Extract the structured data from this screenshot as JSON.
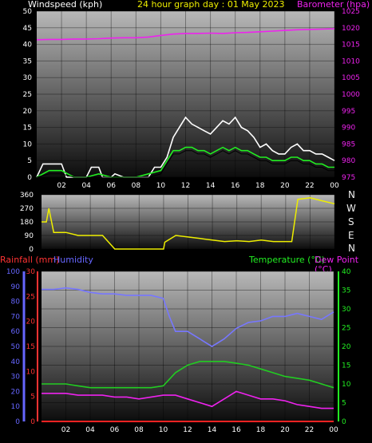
{
  "header": {
    "wind_title": "Windspeed (kph)",
    "graph_title": "24 hour graph day : 01 May 2023",
    "baro_title": "Barometer (hpa)"
  },
  "direction_labels": [
    "N",
    "W",
    "S",
    "E",
    "N"
  ],
  "bottom_titles": {
    "rain": "Rainfall (mm)",
    "humidity": "Humidity",
    "temperature": "Temperature (°C)",
    "dewpoint": "Dew Point (°C)"
  },
  "colors": {
    "wind_avg": "#22ee22",
    "wind_gust": "#ffffff",
    "wind_black": "#000000",
    "barometer": "#ee22ee",
    "direction": "#eeee00",
    "humidity": "#7777ff",
    "temperature": "#22cc22",
    "dewpoint": "#ee22ee",
    "rain": "#ff2222",
    "rain_axis": "#ff3333",
    "hum_axis": "#6666ff",
    "temp_axis": "#22ee22",
    "grid_top": "#aaaaaa",
    "grid_bottom": "#111111"
  },
  "chart_data": [
    {
      "type": "line",
      "name": "wind-barometer",
      "x_ticks": [
        "02",
        "04",
        "06",
        "08",
        "10",
        "12",
        "14",
        "16",
        "18",
        "20",
        "22",
        "00"
      ],
      "y_left": {
        "label": "Windspeed (kph)",
        "ylim": [
          0,
          50
        ],
        "ticks": [
          0,
          5,
          10,
          15,
          20,
          25,
          30,
          35,
          40,
          45,
          50
        ]
      },
      "y_right": {
        "label": "Barometer (hpa)",
        "ylim": [
          975,
          1025
        ],
        "ticks": [
          975,
          980,
          985,
          990,
          995,
          1000,
          1005,
          1010,
          1015,
          1020,
          1025
        ]
      },
      "series": [
        {
          "name": "gust",
          "x": [
            0,
            0.5,
            1,
            2,
            2.4,
            3,
            4,
            4.4,
            5,
            5.3,
            6,
            6.3,
            7,
            8,
            9,
            9.5,
            10,
            10.5,
            11,
            11.5,
            12,
            12.5,
            13,
            13.5,
            14,
            14.5,
            15,
            15.5,
            16,
            16.5,
            17,
            17.5,
            18,
            18.5,
            19,
            19.5,
            20,
            20.5,
            21,
            21.5,
            22,
            22.5,
            23,
            23.5,
            24
          ],
          "y": [
            0,
            4,
            4,
            4,
            0,
            0,
            0,
            3,
            3,
            0,
            0,
            1,
            0,
            0,
            0,
            3,
            3,
            6,
            12,
            15,
            18,
            16,
            15,
            14,
            13,
            15,
            17,
            16,
            18,
            15,
            14,
            12,
            9,
            10,
            8,
            7,
            7,
            9,
            10,
            8,
            8,
            7,
            7,
            6,
            5
          ]
        },
        {
          "name": "avg",
          "x": [
            0,
            1,
            2,
            3,
            4,
            5,
            6,
            7,
            8,
            9,
            10,
            10.5,
            11,
            11.5,
            12,
            12.5,
            13,
            13.5,
            14,
            14.5,
            15,
            15.5,
            16,
            16.5,
            17,
            17.5,
            18,
            18.5,
            19,
            19.5,
            20,
            20.5,
            21,
            21.5,
            22,
            22.5,
            23,
            23.5,
            24
          ],
          "y": [
            0,
            2,
            2,
            0,
            0,
            1,
            0,
            0,
            0,
            1,
            2,
            5,
            8,
            8,
            9,
            9,
            8,
            8,
            7,
            8,
            9,
            8,
            9,
            8,
            8,
            7,
            6,
            6,
            5,
            5,
            5,
            6,
            6,
            5,
            5,
            4,
            4,
            3,
            3
          ]
        },
        {
          "name": "barometer",
          "x": [
            0,
            1,
            2,
            3,
            4,
            5,
            6,
            7,
            8,
            9,
            10,
            11,
            12,
            13,
            14,
            15,
            16,
            17,
            18,
            19,
            20,
            21,
            22,
            23,
            24
          ],
          "y": [
            1016.4,
            1016.5,
            1016.5,
            1016.6,
            1016.6,
            1016.7,
            1016.9,
            1017.0,
            1017.0,
            1017.2,
            1017.7,
            1018.1,
            1018.3,
            1018.3,
            1018.4,
            1018.3,
            1018.5,
            1018.6,
            1018.8,
            1019.0,
            1019.2,
            1019.4,
            1019.5,
            1019.6,
            1019.7
          ]
        }
      ]
    },
    {
      "type": "line",
      "name": "wind-direction",
      "y_ticks": [
        0,
        90,
        180,
        270,
        360
      ],
      "ylim": [
        0,
        360
      ],
      "series": [
        {
          "name": "direction",
          "x": [
            0,
            0.4,
            0.6,
            1,
            2,
            3,
            4,
            5,
            6,
            7,
            8,
            9,
            10,
            10.1,
            11,
            12,
            13,
            14,
            15,
            16,
            17,
            18,
            19,
            20,
            20.5,
            21,
            22,
            23,
            24
          ],
          "y": [
            180,
            180,
            270,
            110,
            110,
            90,
            90,
            90,
            0,
            0,
            0,
            0,
            0,
            45,
            90,
            80,
            70,
            60,
            50,
            55,
            50,
            60,
            50,
            50,
            50,
            330,
            340,
            320,
            300
          ]
        }
      ]
    },
    {
      "type": "line",
      "name": "temperature-humidity-rain",
      "x_ticks": [
        "02",
        "04",
        "06",
        "08",
        "10",
        "12",
        "14",
        "16",
        "18",
        "20",
        "22",
        "00"
      ],
      "y_rain": {
        "label": "Rainfall (mm)",
        "ylim": [
          0,
          30
        ],
        "ticks": [
          0,
          5,
          10,
          15,
          20,
          25,
          30
        ]
      },
      "y_humidity": {
        "label": "Humidity",
        "ylim": [
          0,
          100
        ],
        "ticks": [
          0,
          10,
          20,
          30,
          40,
          50,
          60,
          70,
          80,
          90,
          100
        ]
      },
      "y_temperature": {
        "label": "Temperature (°C)",
        "ylim": [
          0,
          40
        ],
        "ticks": [
          0,
          5,
          10,
          15,
          20,
          25,
          30,
          35,
          40
        ]
      },
      "series": [
        {
          "name": "humidity",
          "x": [
            0,
            1,
            2,
            3,
            4,
            5,
            6,
            7,
            8,
            9,
            10,
            10.5,
            11,
            12,
            13,
            14,
            15,
            16,
            17,
            18,
            19,
            20,
            21,
            22,
            23,
            24
          ],
          "y": [
            88,
            88,
            89,
            88,
            86,
            85,
            85,
            84,
            84,
            84,
            82,
            70,
            60,
            60,
            55,
            50,
            55,
            62,
            66,
            67,
            70,
            70,
            72,
            70,
            68,
            73
          ]
        },
        {
          "name": "temperature",
          "x": [
            0,
            1,
            2,
            3,
            4,
            5,
            6,
            7,
            8,
            9,
            10,
            11,
            12,
            13,
            14,
            15,
            16,
            17,
            18,
            19,
            20,
            21,
            22,
            23,
            24
          ],
          "y": [
            10,
            10,
            10,
            9.5,
            9,
            9,
            9,
            9,
            9,
            9,
            9.5,
            13,
            15,
            16,
            16,
            16,
            15.5,
            15,
            14,
            13,
            12,
            11.5,
            11,
            10,
            9
          ]
        },
        {
          "name": "dewpoint",
          "x": [
            0,
            1,
            2,
            3,
            4,
            5,
            6,
            7,
            8,
            9,
            10,
            11,
            12,
            13,
            14,
            15,
            16,
            17,
            18,
            19,
            20,
            21,
            22,
            23,
            24
          ],
          "y": [
            7.5,
            7.5,
            7.5,
            7,
            7,
            7,
            6.5,
            6.5,
            6,
            6.5,
            7,
            7,
            6,
            5,
            4,
            6,
            8,
            7,
            6,
            6,
            5.5,
            4.5,
            4,
            3.5,
            3.5
          ]
        },
        {
          "name": "rain",
          "x": [
            0,
            24
          ],
          "y": [
            0,
            0
          ]
        }
      ]
    }
  ]
}
